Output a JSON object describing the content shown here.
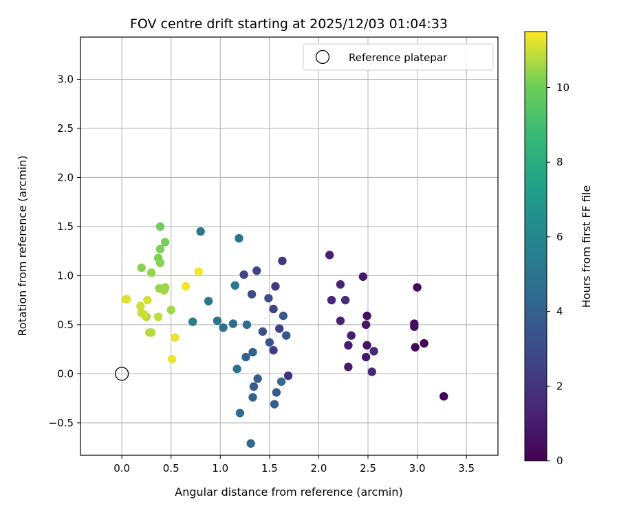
{
  "chart_data": {
    "type": "scatter",
    "title": "FOV centre drift starting at 2025/12/03 01:04:33",
    "xlabel": "Angular distance from reference (arcmin)",
    "ylabel": "Rotation from reference (arcmin)",
    "xlim": [
      -0.42,
      3.82
    ],
    "ylim": [
      -0.83,
      3.43
    ],
    "xticks": [
      0.0,
      0.5,
      1.0,
      1.5,
      2.0,
      2.5,
      3.0,
      3.5
    ],
    "xtick_labels": [
      "0.0",
      "0.5",
      "1.0",
      "1.5",
      "2.0",
      "2.5",
      "3.0",
      "3.5"
    ],
    "yticks": [
      -0.5,
      0.0,
      0.5,
      1.0,
      1.5,
      2.0,
      2.5,
      3.0
    ],
    "ytick_labels": [
      "−0.5",
      "0.0",
      "0.5",
      "1.0",
      "1.5",
      "2.0",
      "2.5",
      "3.0"
    ],
    "grid": true,
    "legend": {
      "position": "top-right",
      "entries": [
        "Reference platepar"
      ]
    },
    "reference_point": {
      "x": 0.0,
      "y": 0.0,
      "label": "Reference platepar"
    },
    "colorbar": {
      "label": "Hours from first FF file",
      "range": [
        0,
        11.5
      ],
      "ticks": [
        0,
        2,
        4,
        6,
        8,
        10
      ],
      "tick_labels": [
        "0",
        "2",
        "4",
        "6",
        "8",
        "10"
      ],
      "colormap": "viridis"
    },
    "points": [
      {
        "x": 3.27,
        "y": -0.23,
        "c": 0.1
      },
      {
        "x": 3.07,
        "y": 0.31,
        "c": 0.2
      },
      {
        "x": 2.98,
        "y": 0.27,
        "c": 0.3
      },
      {
        "x": 3.0,
        "y": 0.88,
        "c": 0.3
      },
      {
        "x": 2.97,
        "y": 0.51,
        "c": 0.4
      },
      {
        "x": 2.97,
        "y": 0.48,
        "c": 0.5
      },
      {
        "x": 2.49,
        "y": 0.59,
        "c": 0.6
      },
      {
        "x": 2.49,
        "y": 0.29,
        "c": 0.7
      },
      {
        "x": 2.48,
        "y": 0.5,
        "c": 0.8
      },
      {
        "x": 2.48,
        "y": 0.17,
        "c": 0.8
      },
      {
        "x": 2.45,
        "y": 0.99,
        "c": 0.9
      },
      {
        "x": 2.3,
        "y": 0.07,
        "c": 1.0
      },
      {
        "x": 2.3,
        "y": 0.29,
        "c": 1.0
      },
      {
        "x": 2.33,
        "y": 0.39,
        "c": 1.1
      },
      {
        "x": 2.11,
        "y": 1.21,
        "c": 1.2
      },
      {
        "x": 2.22,
        "y": 0.54,
        "c": 1.3
      },
      {
        "x": 2.22,
        "y": 0.91,
        "c": 1.3
      },
      {
        "x": 2.56,
        "y": 0.23,
        "c": 1.4
      },
      {
        "x": 2.54,
        "y": 0.02,
        "c": 1.5
      },
      {
        "x": 2.13,
        "y": 0.75,
        "c": 1.5
      },
      {
        "x": 2.27,
        "y": 0.75,
        "c": 1.6
      },
      {
        "x": 1.69,
        "y": -0.02,
        "c": 1.8
      },
      {
        "x": 1.63,
        "y": 1.15,
        "c": 2.0
      },
      {
        "x": 1.56,
        "y": 0.89,
        "c": 2.2
      },
      {
        "x": 1.54,
        "y": 0.24,
        "c": 2.3
      },
      {
        "x": 1.6,
        "y": 0.46,
        "c": 2.5
      },
      {
        "x": 1.54,
        "y": 0.66,
        "c": 2.6
      },
      {
        "x": 1.37,
        "y": 1.05,
        "c": 2.7
      },
      {
        "x": 1.24,
        "y": 1.01,
        "c": 2.8
      },
      {
        "x": 1.32,
        "y": 0.81,
        "c": 3.0
      },
      {
        "x": 1.49,
        "y": 0.77,
        "c": 3.2
      },
      {
        "x": 1.43,
        "y": 0.43,
        "c": 3.3
      },
      {
        "x": 1.5,
        "y": 0.32,
        "c": 3.4
      },
      {
        "x": 1.67,
        "y": 0.39,
        "c": 3.5
      },
      {
        "x": 1.64,
        "y": 0.59,
        "c": 3.6
      },
      {
        "x": 1.57,
        "y": -0.19,
        "c": 3.7
      },
      {
        "x": 1.55,
        "y": -0.31,
        "c": 3.8
      },
      {
        "x": 1.38,
        "y": -0.05,
        "c": 3.8
      },
      {
        "x": 1.34,
        "y": -0.13,
        "c": 3.9
      },
      {
        "x": 1.33,
        "y": 0.22,
        "c": 4.0
      },
      {
        "x": 1.26,
        "y": 0.17,
        "c": 4.1
      },
      {
        "x": 1.33,
        "y": -0.24,
        "c": 4.2
      },
      {
        "x": 1.31,
        "y": -0.71,
        "c": 4.3
      },
      {
        "x": 1.62,
        "y": -0.08,
        "c": 4.4
      },
      {
        "x": 1.27,
        "y": 0.5,
        "c": 4.5
      },
      {
        "x": 1.2,
        "y": -0.4,
        "c": 4.6
      },
      {
        "x": 1.13,
        "y": 0.51,
        "c": 4.7
      },
      {
        "x": 1.03,
        "y": 0.47,
        "c": 4.8
      },
      {
        "x": 0.97,
        "y": 0.54,
        "c": 4.9
      },
      {
        "x": 1.17,
        "y": 0.05,
        "c": 5.0
      },
      {
        "x": 1.19,
        "y": 1.38,
        "c": 5.0
      },
      {
        "x": 0.8,
        "y": 1.45,
        "c": 5.1
      },
      {
        "x": 0.88,
        "y": 0.74,
        "c": 5.2
      },
      {
        "x": 1.15,
        "y": 0.9,
        "c": 5.3
      },
      {
        "x": 0.72,
        "y": 0.53,
        "c": 5.5
      },
      {
        "x": 0.39,
        "y": 1.5,
        "c": 10.0
      },
      {
        "x": 0.44,
        "y": 1.34,
        "c": 10.1
      },
      {
        "x": 0.39,
        "y": 1.27,
        "c": 10.2
      },
      {
        "x": 0.37,
        "y": 1.18,
        "c": 10.2
      },
      {
        "x": 0.39,
        "y": 1.13,
        "c": 10.3
      },
      {
        "x": 0.2,
        "y": 1.08,
        "c": 10.3
      },
      {
        "x": 0.3,
        "y": 1.03,
        "c": 10.4
      },
      {
        "x": 0.44,
        "y": 0.88,
        "c": 10.5
      },
      {
        "x": 0.38,
        "y": 0.87,
        "c": 10.5
      },
      {
        "x": 0.43,
        "y": 0.85,
        "c": 10.6
      },
      {
        "x": 0.5,
        "y": 0.65,
        "c": 10.6
      },
      {
        "x": 0.25,
        "y": 0.58,
        "c": 10.7
      },
      {
        "x": 0.28,
        "y": 0.42,
        "c": 10.8
      },
      {
        "x": 0.3,
        "y": 0.42,
        "c": 10.8
      },
      {
        "x": 0.37,
        "y": 0.58,
        "c": 10.9
      },
      {
        "x": 0.19,
        "y": 0.69,
        "c": 11.0
      },
      {
        "x": 0.2,
        "y": 0.62,
        "c": 11.0
      },
      {
        "x": 0.23,
        "y": 0.6,
        "c": 11.0
      },
      {
        "x": 0.26,
        "y": 0.75,
        "c": 11.1
      },
      {
        "x": 0.04,
        "y": 0.76,
        "c": 11.2
      },
      {
        "x": 0.05,
        "y": 0.76,
        "c": 11.2
      },
      {
        "x": 0.51,
        "y": 0.15,
        "c": 11.3
      },
      {
        "x": 0.54,
        "y": 0.37,
        "c": 11.3
      },
      {
        "x": 0.65,
        "y": 0.89,
        "c": 11.4
      },
      {
        "x": 0.78,
        "y": 1.04,
        "c": 11.4
      }
    ]
  }
}
